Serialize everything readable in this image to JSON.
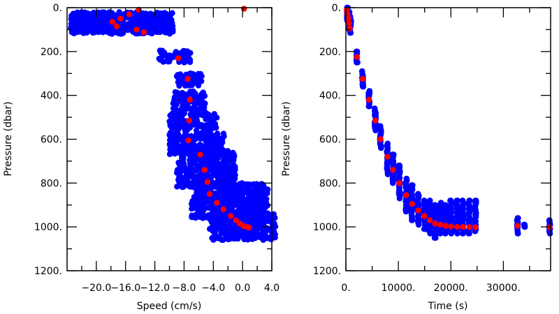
{
  "chart_data": [
    {
      "type": "scatter",
      "title": "",
      "xlabel": "Speed (cm/s)",
      "ylabel": "Pressure (dbar)",
      "xlim": [
        -24.0,
        4.0
      ],
      "ylim": [
        1200,
        0
      ],
      "x_ticks": [
        -20.0,
        -16.0,
        -12.0,
        -8.0,
        -4.0,
        0.0,
        4.0
      ],
      "x_tick_labels": [
        "−20.0",
        "−16.0",
        "−12.0",
        "−8.0",
        "−4.0",
        "0.0",
        "4.0"
      ],
      "y_ticks": [
        0,
        200,
        400,
        600,
        800,
        1000,
        1200
      ],
      "y_tick_labels": [
        "0.",
        "200.",
        "400.",
        "600.",
        "800.",
        "1000.",
        "1200."
      ],
      "grid": false,
      "colors": {
        "samples": "#0000ff",
        "profile_mean": "#ff0000"
      },
      "series": [
        {
          "color": "#0000ff",
          "clusters": [
            {
              "x": [
                -23.5,
                -9.5
              ],
              "y": [
                20,
                120
              ],
              "n": 420
            },
            {
              "x": [
                -11.5,
                -7.0
              ],
              "y": [
                195,
                250
              ],
              "n": 50
            },
            {
              "x": [
                -9.0,
                -5.5
              ],
              "y": [
                300,
                360
              ],
              "n": 60
            },
            {
              "x": [
                -9.5,
                -5.0
              ],
              "y": [
                380,
                470
              ],
              "n": 80
            },
            {
              "x": [
                -10.0,
                -3.5
              ],
              "y": [
                480,
                560
              ],
              "n": 110
            },
            {
              "x": [
                -10.0,
                -2.5
              ],
              "y": [
                570,
                670
              ],
              "n": 190
            },
            {
              "x": [
                -9.0,
                -1.0
              ],
              "y": [
                650,
                820
              ],
              "n": 340
            },
            {
              "x": [
                -7.0,
                3.5
              ],
              "y": [
                800,
                960
              ],
              "n": 360
            },
            {
              "x": [
                -4.5,
                4.5
              ],
              "y": [
                930,
                1060
              ],
              "n": 300
            }
          ]
        },
        {
          "color": "#ff0000",
          "points": [
            [
              -14.2,
              10
            ],
            [
              -15.5,
              30
            ],
            [
              -16.7,
              50
            ],
            [
              -17.8,
              65
            ],
            [
              -17.2,
              85
            ],
            [
              -14.5,
              100
            ],
            [
              -13.5,
              112
            ],
            [
              0.2,
              5
            ],
            [
              -8.8,
              230
            ],
            [
              -7.5,
              325
            ],
            [
              -7.2,
              420
            ],
            [
              -7.3,
              515
            ],
            [
              -7.4,
              605
            ],
            [
              -5.8,
              670
            ],
            [
              -5.2,
              740
            ],
            [
              -4.8,
              795
            ],
            [
              -4.5,
              850
            ],
            [
              -3.5,
              890
            ],
            [
              -2.6,
              920
            ],
            [
              -1.6,
              950
            ],
            [
              -0.9,
              970
            ],
            [
              -0.4,
              985
            ],
            [
              0.1,
              995
            ],
            [
              0.6,
              1000
            ],
            [
              0.9,
              1003
            ]
          ]
        }
      ]
    },
    {
      "type": "scatter",
      "title": "",
      "xlabel": "Time (s)",
      "ylabel": "Pressure (dbar)",
      "xlim": [
        0,
        39000
      ],
      "ylim": [
        1200,
        0
      ],
      "x_ticks": [
        0,
        10000,
        20000,
        30000
      ],
      "x_tick_labels": [
        "0.",
        "10000.",
        "20000.",
        "30000."
      ],
      "y_ticks": [
        0,
        200,
        400,
        600,
        800,
        1000,
        1200
      ],
      "y_tick_labels": [
        "0.",
        "200.",
        "400.",
        "600.",
        "800.",
        "1000.",
        "1200."
      ],
      "grid": false,
      "colors": {
        "samples": "#0000ff",
        "profile_mean": "#ff0000"
      },
      "series": [
        {
          "color": "#0000ff",
          "columns": [
            {
              "x": 300,
              "y": [
                0,
                60
              ]
            },
            {
              "x": 600,
              "y": [
                20,
                100
              ]
            },
            {
              "x": 900,
              "y": [
                40,
                115
              ]
            },
            {
              "x": 2100,
              "y": [
                200,
                250
              ]
            },
            {
              "x": 3200,
              "y": [
                290,
                360
              ]
            },
            {
              "x": 4400,
              "y": [
                380,
                450
              ]
            },
            {
              "x": 5600,
              "y": [
                460,
                560
              ]
            },
            {
              "x": 6600,
              "y": [
                540,
                640
              ]
            },
            {
              "x": 7900,
              "y": [
                620,
                760
              ]
            },
            {
              "x": 9000,
              "y": [
                670,
                800
              ]
            },
            {
              "x": 10200,
              "y": [
                720,
                870
              ]
            },
            {
              "x": 11500,
              "y": [
                780,
                930
              ]
            },
            {
              "x": 12600,
              "y": [
                810,
                970
              ]
            },
            {
              "x": 13800,
              "y": [
                850,
                990
              ]
            },
            {
              "x": 15000,
              "y": [
                880,
                1010
              ]
            },
            {
              "x": 16000,
              "y": [
                880,
                1030
              ]
            },
            {
              "x": 17000,
              "y": [
                900,
                1050
              ]
            },
            {
              "x": 18000,
              "y": [
                890,
                1030
              ]
            },
            {
              "x": 19000,
              "y": [
                900,
                1030
              ]
            },
            {
              "x": 20000,
              "y": [
                880,
                1030
              ]
            },
            {
              "x": 21200,
              "y": [
                880,
                1030
              ]
            },
            {
              "x": 22300,
              "y": [
                880,
                1030
              ]
            },
            {
              "x": 23500,
              "y": [
                880,
                1030
              ]
            },
            {
              "x": 24700,
              "y": [
                880,
                1020
              ]
            },
            {
              "x": 32700,
              "y": [
                960,
                1030
              ]
            },
            {
              "x": 34000,
              "y": [
                990,
                1000
              ]
            },
            {
              "x": 38800,
              "y": [
                970,
                1030
              ]
            }
          ]
        },
        {
          "color": "#ff0000",
          "points": [
            [
              150,
              10
            ],
            [
              300,
              30
            ],
            [
              450,
              50
            ],
            [
              600,
              70
            ],
            [
              750,
              95
            ],
            [
              2100,
              225
            ],
            [
              3200,
              325
            ],
            [
              4400,
              420
            ],
            [
              5600,
              515
            ],
            [
              6600,
              600
            ],
            [
              7900,
              680
            ],
            [
              9000,
              740
            ],
            [
              10200,
              800
            ],
            [
              11500,
              855
            ],
            [
              12600,
              895
            ],
            [
              13800,
              925
            ],
            [
              15000,
              950
            ],
            [
              16000,
              970
            ],
            [
              17000,
              985
            ],
            [
              18000,
              990
            ],
            [
              19000,
              995
            ],
            [
              20000,
              998
            ],
            [
              21200,
              1000
            ],
            [
              22300,
              1000
            ],
            [
              23500,
              1001
            ],
            [
              24700,
              1002
            ],
            [
              32700,
              995
            ],
            [
              38800,
              1002
            ]
          ]
        }
      ]
    }
  ]
}
